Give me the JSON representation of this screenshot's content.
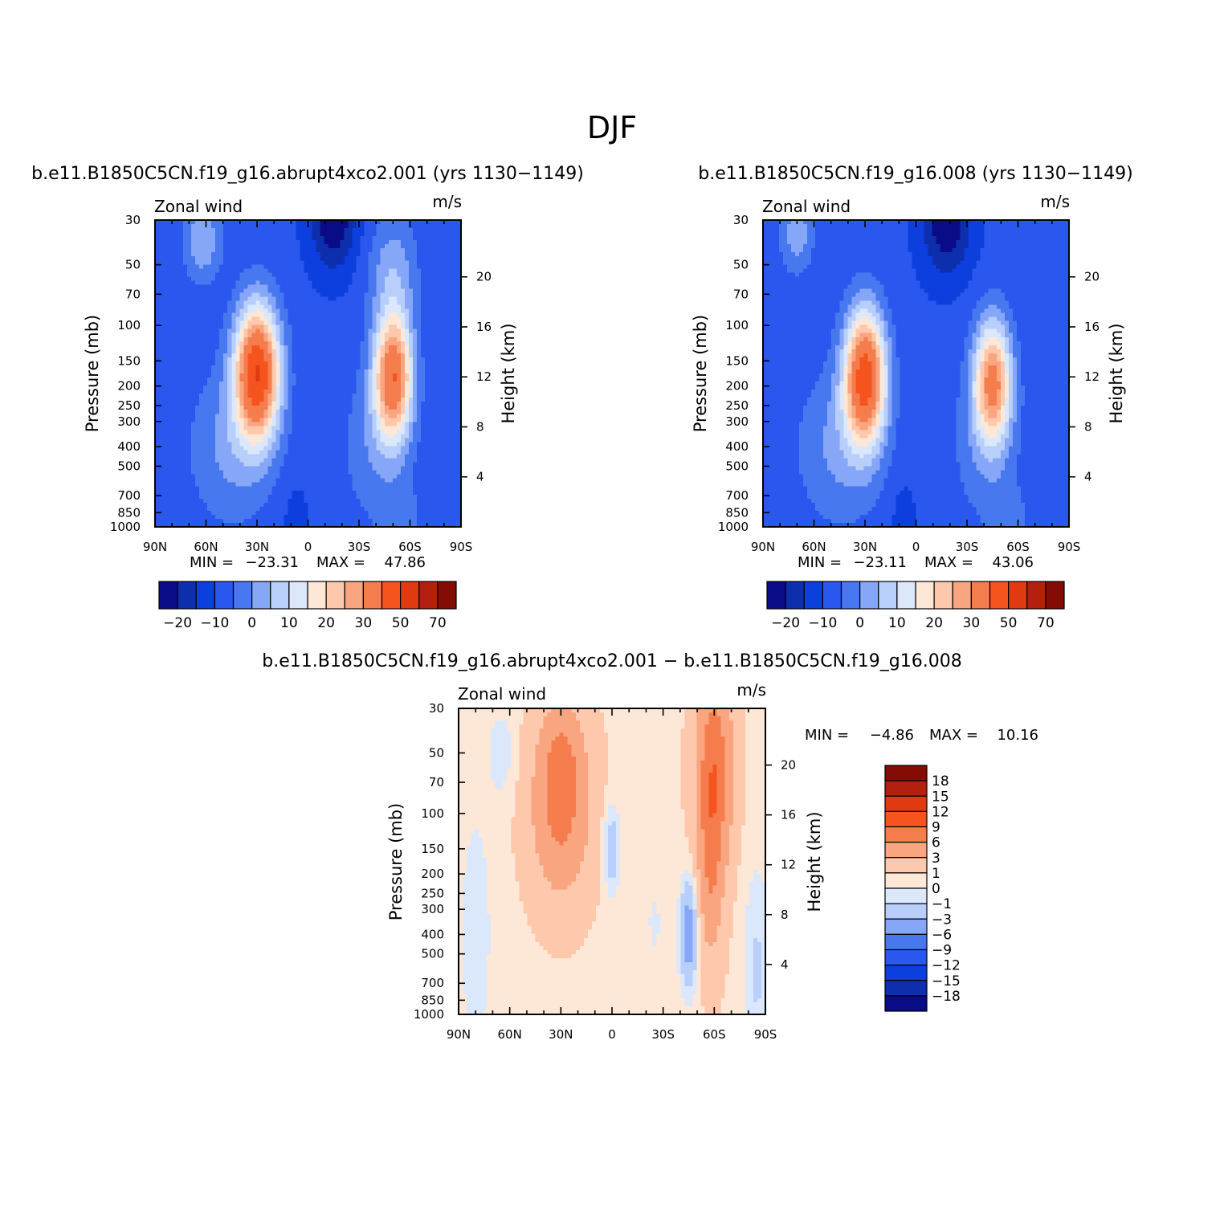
{
  "figure_title": "DJF",
  "colors": {
    "panel_palette": [
      "#0a0c87",
      "#0d2fae",
      "#0c3fdd",
      "#2a58ee",
      "#4878f0",
      "#86a6f7",
      "#b8cefb",
      "#dbe8fb",
      "#fde7d6",
      "#fdc8ab",
      "#f8a580",
      "#f57d4d",
      "#f6541f",
      "#e03a10",
      "#b4200f",
      "#850b05"
    ],
    "diff_palette": [
      "#0a0c87",
      "#0d2fae",
      "#0c3fdd",
      "#2a58ee",
      "#4878f0",
      "#86a6f7",
      "#b8cefb",
      "#dbe8fb",
      "#fde7d6",
      "#fdc8ab",
      "#f8a580",
      "#f57d4d",
      "#f6541f",
      "#e03a10",
      "#b4200f",
      "#850b05"
    ]
  },
  "chart_data": [
    {
      "type": "heatmap",
      "title": "b.e11.B1850C5CN.f19_g16.abrupt4xco2.001 (yrs 1130−1149)",
      "left_label": "Zonal wind",
      "units_label": "m/s",
      "ylabel": "Pressure (mb)",
      "ylabel_right": "Height (km)",
      "x_ticks": [
        "90N",
        "60N",
        "30N",
        "0",
        "30S",
        "60S",
        "90S"
      ],
      "y_ticks": [
        "30",
        "50",
        "70",
        "100",
        "150",
        "200",
        "250",
        "300",
        "400",
        "500",
        "700",
        "850",
        "1000"
      ],
      "y_ticks_right": [
        "20",
        "16",
        "12",
        "8",
        "4"
      ],
      "xlim": [
        90,
        -90
      ],
      "ylim": [
        1000,
        30
      ],
      "y_scale": "log",
      "min_label": "MIN = ",
      "min_value": "−23.31",
      "max_label": "MAX = ",
      "max_value": "47.86",
      "levels": [
        -25,
        -20,
        -15,
        -10,
        -5,
        0,
        5,
        10,
        15,
        20,
        25,
        30,
        40,
        50,
        60,
        70,
        80
      ],
      "colorbar_labels": [
        "−20",
        "−10",
        "0",
        "10",
        "20",
        "30",
        "50",
        "70"
      ],
      "features": [
        {
          "kind": "jet",
          "lat": 30,
          "pressure": 170,
          "peak": 47.86
        },
        {
          "kind": "jet",
          "lat": -50,
          "pressure": 180,
          "peak": 36
        },
        {
          "kind": "easterly",
          "lat": -15,
          "pressure": 30,
          "peak": -23.31
        },
        {
          "kind": "westerly",
          "lat": 65,
          "pressure": 30,
          "peak": 15
        }
      ]
    },
    {
      "type": "heatmap",
      "title": "b.e11.B1850C5CN.f19_g16.008 (yrs 1130−1149)",
      "left_label": "Zonal wind",
      "units_label": "m/s",
      "ylabel": "Pressure (mb)",
      "ylabel_right": "Height (km)",
      "x_ticks": [
        "90N",
        "60N",
        "30N",
        "0",
        "30S",
        "60S",
        "90S"
      ],
      "y_ticks": [
        "30",
        "50",
        "70",
        "100",
        "150",
        "200",
        "250",
        "300",
        "400",
        "500",
        "700",
        "850",
        "1000"
      ],
      "y_ticks_right": [
        "20",
        "16",
        "12",
        "8",
        "4"
      ],
      "xlim": [
        90,
        -90
      ],
      "ylim": [
        1000,
        30
      ],
      "y_scale": "log",
      "min_label": "MIN = ",
      "min_value": "−23.11",
      "max_label": "MAX = ",
      "max_value": "43.06",
      "levels": [
        -25,
        -20,
        -15,
        -10,
        -5,
        0,
        5,
        10,
        15,
        20,
        25,
        30,
        40,
        50,
        60,
        70,
        80
      ],
      "colorbar_labels": [
        "−20",
        "−10",
        "0",
        "10",
        "20",
        "30",
        "50",
        "70"
      ],
      "features": [
        {
          "kind": "jet",
          "lat": 30,
          "pressure": 180,
          "peak": 43.06
        },
        {
          "kind": "jet",
          "lat": -45,
          "pressure": 190,
          "peak": 30
        },
        {
          "kind": "easterly",
          "lat": -18,
          "pressure": 30,
          "peak": -23.11
        },
        {
          "kind": "westerly",
          "lat": 70,
          "pressure": 30,
          "peak": 12
        }
      ]
    },
    {
      "type": "heatmap",
      "title": "b.e11.B1850C5CN.f19_g16.abrupt4xco2.001 − b.e11.B1850C5CN.f19_g16.008",
      "left_label": "Zonal wind",
      "units_label": "m/s",
      "ylabel": "Pressure (mb)",
      "ylabel_right": "Height (km)",
      "x_ticks": [
        "90N",
        "60N",
        "30N",
        "0",
        "30S",
        "60S",
        "90S"
      ],
      "y_ticks": [
        "30",
        "50",
        "70",
        "100",
        "150",
        "200",
        "250",
        "300",
        "400",
        "500",
        "700",
        "850",
        "1000"
      ],
      "y_ticks_right": [
        "20",
        "16",
        "12",
        "8",
        "4"
      ],
      "xlim": [
        90,
        -90
      ],
      "ylim": [
        1000,
        30
      ],
      "y_scale": "log",
      "min_label": "MIN = ",
      "min_value": "−4.86",
      "max_label": "MAX = ",
      "max_value": "10.16",
      "levels": [
        -21,
        -18,
        -15,
        -12,
        -9,
        -6,
        -3,
        -1,
        0,
        1,
        3,
        6,
        9,
        12,
        15,
        18,
        21
      ],
      "colorbar_labels": [
        "18",
        "15",
        "12",
        "9",
        "6",
        "3",
        "1",
        "0",
        "−1",
        "−3",
        "−6",
        "−9",
        "−12",
        "−15",
        "−18"
      ],
      "features": [
        {
          "kind": "increase",
          "lat": 30,
          "pressure": 90,
          "peak": 8
        },
        {
          "kind": "increase",
          "lat": -60,
          "pressure": 60,
          "peak": 10.16
        },
        {
          "kind": "decrease",
          "lat": -45,
          "pressure": 400,
          "peak": -4.86
        },
        {
          "kind": "decrease",
          "lat": 0,
          "pressure": 150,
          "peak": -3
        }
      ]
    }
  ]
}
